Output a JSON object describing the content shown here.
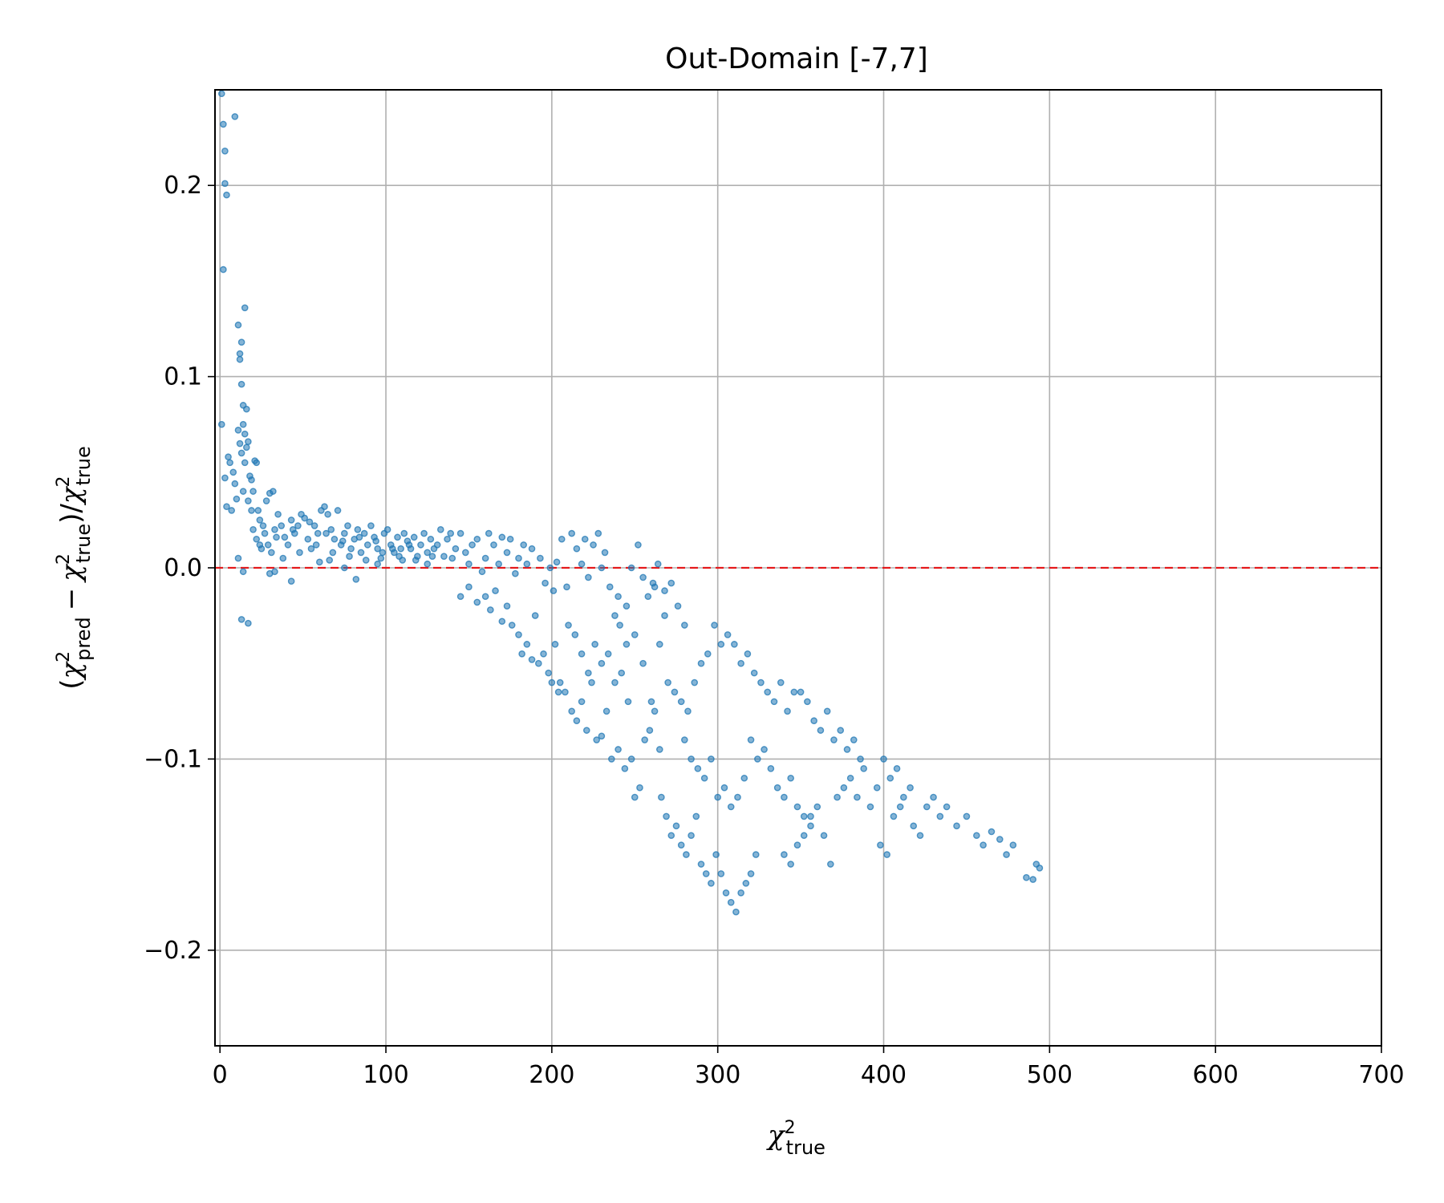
{
  "chart_data": {
    "type": "scatter",
    "title": "Out-Domain [-7,7]",
    "xlim": [
      -3,
      700
    ],
    "ylim": [
      -0.25,
      0.25
    ],
    "xticks": [
      0,
      100,
      200,
      300,
      400,
      500,
      600,
      700
    ],
    "xtick_labels": [
      "0",
      "100",
      "200",
      "300",
      "400",
      "500",
      "600",
      "700"
    ],
    "yticks": [
      -0.2,
      -0.1,
      0.0,
      0.1,
      0.2
    ],
    "ytick_labels": [
      "−0.2",
      "−0.1",
      "0.0",
      "0.1",
      "0.2"
    ],
    "grid": true,
    "reference_line": {
      "y": 0.0,
      "color": "#e41a1c",
      "style": "dashed"
    },
    "point_color": "#1f77b4",
    "xlabel": {
      "base": "χ",
      "sup": "2",
      "sub": "true"
    },
    "ylabel": {
      "num_a_sub": "pred",
      "num_b_sub": "true",
      "den_sub": "true",
      "sup": "2",
      "base": "χ",
      "minus": "−"
    },
    "points": [
      [
        1,
        0.248
      ],
      [
        2,
        0.232
      ],
      [
        3,
        0.218
      ],
      [
        3,
        0.201
      ],
      [
        4,
        0.195
      ],
      [
        9,
        0.236
      ],
      [
        2,
        0.156
      ],
      [
        1,
        0.075
      ],
      [
        3,
        0.047
      ],
      [
        4,
        0.032
      ],
      [
        5,
        0.058
      ],
      [
        6,
        0.055
      ],
      [
        7,
        0.03
      ],
      [
        8,
        0.05
      ],
      [
        9,
        0.044
      ],
      [
        10,
        0.036
      ],
      [
        11,
        0.127
      ],
      [
        12,
        0.112
      ],
      [
        13,
        0.118
      ],
      [
        12,
        0.109
      ],
      [
        15,
        0.136
      ],
      [
        13,
        0.096
      ],
      [
        14,
        0.085
      ],
      [
        16,
        0.083
      ],
      [
        11,
        0.072
      ],
      [
        12,
        0.065
      ],
      [
        13,
        0.06
      ],
      [
        14,
        0.075
      ],
      [
        15,
        0.07
      ],
      [
        16,
        0.063
      ],
      [
        17,
        0.066
      ],
      [
        15,
        0.055
      ],
      [
        18,
        0.048
      ],
      [
        19,
        0.046
      ],
      [
        20,
        0.04
      ],
      [
        21,
        0.056
      ],
      [
        22,
        0.055
      ],
      [
        14,
        0.04
      ],
      [
        17,
        0.035
      ],
      [
        19,
        0.03
      ],
      [
        23,
        0.03
      ],
      [
        24,
        0.025
      ],
      [
        26,
        0.022
      ],
      [
        28,
        0.035
      ],
      [
        30,
        0.039
      ],
      [
        32,
        0.04
      ],
      [
        11,
        0.005
      ],
      [
        13,
        -0.027
      ],
      [
        17,
        -0.029
      ],
      [
        14,
        -0.002
      ],
      [
        20,
        0.02
      ],
      [
        22,
        0.015
      ],
      [
        25,
        0.01
      ],
      [
        27,
        0.018
      ],
      [
        29,
        0.012
      ],
      [
        31,
        0.008
      ],
      [
        33,
        0.02
      ],
      [
        35,
        0.028
      ],
      [
        37,
        0.022
      ],
      [
        39,
        0.016
      ],
      [
        41,
        0.012
      ],
      [
        43,
        0.025
      ],
      [
        45,
        0.018
      ],
      [
        47,
        0.022
      ],
      [
        49,
        0.028
      ],
      [
        51,
        0.026
      ],
      [
        53,
        0.015
      ],
      [
        55,
        0.01
      ],
      [
        57,
        0.022
      ],
      [
        59,
        0.018
      ],
      [
        61,
        0.03
      ],
      [
        63,
        0.032
      ],
      [
        65,
        0.028
      ],
      [
        67,
        0.02
      ],
      [
        69,
        0.015
      ],
      [
        71,
        0.03
      ],
      [
        73,
        0.012
      ],
      [
        75,
        0.018
      ],
      [
        77,
        0.022
      ],
      [
        79,
        0.01
      ],
      [
        81,
        0.015
      ],
      [
        83,
        0.02
      ],
      [
        85,
        0.008
      ],
      [
        87,
        0.018
      ],
      [
        89,
        0.012
      ],
      [
        91,
        0.022
      ],
      [
        93,
        0.016
      ],
      [
        95,
        0.01
      ],
      [
        97,
        0.005
      ],
      [
        99,
        0.018
      ],
      [
        101,
        0.02
      ],
      [
        103,
        0.012
      ],
      [
        105,
        0.008
      ],
      [
        107,
        0.016
      ],
      [
        109,
        0.01
      ],
      [
        111,
        0.018
      ],
      [
        113,
        0.014
      ],
      [
        115,
        0.01
      ],
      [
        117,
        0.016
      ],
      [
        119,
        0.006
      ],
      [
        121,
        0.012
      ],
      [
        123,
        0.018
      ],
      [
        125,
        0.008
      ],
      [
        127,
        0.015
      ],
      [
        129,
        0.01
      ],
      [
        131,
        0.012
      ],
      [
        133,
        0.02
      ],
      [
        135,
        0.006
      ],
      [
        137,
        0.015
      ],
      [
        139,
        0.018
      ],
      [
        30,
        -0.003
      ],
      [
        33,
        -0.002
      ],
      [
        43,
        -0.007
      ],
      [
        60,
        0.003
      ],
      [
        66,
        0.004
      ],
      [
        75,
        0.0
      ],
      [
        82,
        -0.006
      ],
      [
        95,
        0.002
      ],
      [
        110,
        0.004
      ],
      [
        125,
        0.002
      ],
      [
        38,
        0.005
      ],
      [
        48,
        0.008
      ],
      [
        58,
        0.012
      ],
      [
        68,
        0.008
      ],
      [
        78,
        0.006
      ],
      [
        88,
        0.004
      ],
      [
        98,
        0.008
      ],
      [
        108,
        0.006
      ],
      [
        118,
        0.004
      ],
      [
        128,
        0.006
      ],
      [
        24,
        0.012
      ],
      [
        34,
        0.016
      ],
      [
        44,
        0.02
      ],
      [
        54,
        0.024
      ],
      [
        64,
        0.018
      ],
      [
        74,
        0.014
      ],
      [
        84,
        0.016
      ],
      [
        94,
        0.014
      ],
      [
        104,
        0.01
      ],
      [
        114,
        0.012
      ],
      [
        140,
        0.005
      ],
      [
        142,
        0.01
      ],
      [
        145,
        0.018
      ],
      [
        148,
        0.008
      ],
      [
        150,
        0.002
      ],
      [
        152,
        0.012
      ],
      [
        155,
        0.015
      ],
      [
        158,
        -0.002
      ],
      [
        160,
        0.005
      ],
      [
        162,
        0.018
      ],
      [
        165,
        0.012
      ],
      [
        168,
        0.002
      ],
      [
        170,
        0.016
      ],
      [
        173,
        0.008
      ],
      [
        175,
        0.015
      ],
      [
        178,
        -0.003
      ],
      [
        180,
        0.005
      ],
      [
        183,
        0.012
      ],
      [
        185,
        0.002
      ],
      [
        188,
        0.01
      ],
      [
        145,
        -0.015
      ],
      [
        150,
        -0.01
      ],
      [
        155,
        -0.018
      ],
      [
        160,
        -0.015
      ],
      [
        163,
        -0.022
      ],
      [
        166,
        -0.012
      ],
      [
        170,
        -0.028
      ],
      [
        173,
        -0.02
      ],
      [
        176,
        -0.03
      ],
      [
        180,
        -0.035
      ],
      [
        182,
        -0.045
      ],
      [
        185,
        -0.04
      ],
      [
        188,
        -0.048
      ],
      [
        190,
        -0.025
      ],
      [
        192,
        -0.05
      ],
      [
        195,
        -0.045
      ],
      [
        198,
        -0.055
      ],
      [
        200,
        -0.06
      ],
      [
        202,
        -0.04
      ],
      [
        204,
        -0.065
      ],
      [
        193,
        0.005
      ],
      [
        196,
        -0.008
      ],
      [
        199,
        0.0
      ],
      [
        201,
        -0.012
      ],
      [
        203,
        0.003
      ],
      [
        206,
        0.015
      ],
      [
        209,
        -0.01
      ],
      [
        212,
        0.018
      ],
      [
        215,
        0.01
      ],
      [
        218,
        0.002
      ],
      [
        220,
        0.015
      ],
      [
        222,
        -0.005
      ],
      [
        225,
        0.012
      ],
      [
        228,
        0.018
      ],
      [
        230,
        0.0
      ],
      [
        232,
        0.008
      ],
      [
        235,
        -0.01
      ],
      [
        238,
        -0.025
      ],
      [
        241,
        -0.03
      ],
      [
        245,
        -0.04
      ],
      [
        205,
        -0.06
      ],
      [
        208,
        -0.065
      ],
      [
        212,
        -0.075
      ],
      [
        215,
        -0.08
      ],
      [
        218,
        -0.07
      ],
      [
        221,
        -0.085
      ],
      [
        224,
        -0.06
      ],
      [
        227,
        -0.09
      ],
      [
        230,
        -0.088
      ],
      [
        233,
        -0.075
      ],
      [
        210,
        -0.03
      ],
      [
        214,
        -0.035
      ],
      [
        218,
        -0.045
      ],
      [
        222,
        -0.055
      ],
      [
        226,
        -0.04
      ],
      [
        230,
        -0.05
      ],
      [
        234,
        -0.045
      ],
      [
        238,
        -0.06
      ],
      [
        242,
        -0.055
      ],
      [
        246,
        -0.07
      ],
      [
        236,
        -0.1
      ],
      [
        240,
        -0.095
      ],
      [
        244,
        -0.105
      ],
      [
        248,
        -0.1
      ],
      [
        250,
        -0.12
      ],
      [
        253,
        -0.115
      ],
      [
        256,
        -0.09
      ],
      [
        259,
        -0.085
      ],
      [
        262,
        -0.075
      ],
      [
        265,
        -0.095
      ],
      [
        248,
        0.0
      ],
      [
        252,
        0.012
      ],
      [
        255,
        -0.005
      ],
      [
        258,
        -0.015
      ],
      [
        261,
        -0.008
      ],
      [
        264,
        0.002
      ],
      [
        268,
        -0.012
      ],
      [
        272,
        -0.008
      ],
      [
        276,
        -0.02
      ],
      [
        280,
        -0.03
      ],
      [
        266,
        -0.12
      ],
      [
        269,
        -0.13
      ],
      [
        272,
        -0.14
      ],
      [
        275,
        -0.135
      ],
      [
        278,
        -0.145
      ],
      [
        281,
        -0.15
      ],
      [
        284,
        -0.14
      ],
      [
        287,
        -0.13
      ],
      [
        290,
        -0.155
      ],
      [
        293,
        -0.16
      ],
      [
        296,
        -0.165
      ],
      [
        299,
        -0.15
      ],
      [
        302,
        -0.16
      ],
      [
        305,
        -0.17
      ],
      [
        308,
        -0.175
      ],
      [
        311,
        -0.18
      ],
      [
        314,
        -0.17
      ],
      [
        317,
        -0.165
      ],
      [
        320,
        -0.16
      ],
      [
        323,
        -0.15
      ],
      [
        270,
        -0.06
      ],
      [
        274,
        -0.065
      ],
      [
        278,
        -0.07
      ],
      [
        282,
        -0.075
      ],
      [
        286,
        -0.06
      ],
      [
        290,
        -0.05
      ],
      [
        294,
        -0.045
      ],
      [
        298,
        -0.03
      ],
      [
        302,
        -0.04
      ],
      [
        306,
        -0.035
      ],
      [
        280,
        -0.09
      ],
      [
        284,
        -0.1
      ],
      [
        288,
        -0.105
      ],
      [
        292,
        -0.11
      ],
      [
        296,
        -0.1
      ],
      [
        300,
        -0.12
      ],
      [
        304,
        -0.115
      ],
      [
        308,
        -0.125
      ],
      [
        312,
        -0.12
      ],
      [
        316,
        -0.11
      ],
      [
        310,
        -0.04
      ],
      [
        314,
        -0.05
      ],
      [
        318,
        -0.045
      ],
      [
        322,
        -0.055
      ],
      [
        326,
        -0.06
      ],
      [
        330,
        -0.065
      ],
      [
        334,
        -0.07
      ],
      [
        338,
        -0.06
      ],
      [
        342,
        -0.075
      ],
      [
        346,
        -0.065
      ],
      [
        320,
        -0.09
      ],
      [
        324,
        -0.1
      ],
      [
        328,
        -0.095
      ],
      [
        332,
        -0.105
      ],
      [
        336,
        -0.115
      ],
      [
        340,
        -0.12
      ],
      [
        344,
        -0.11
      ],
      [
        348,
        -0.125
      ],
      [
        352,
        -0.13
      ],
      [
        356,
        -0.135
      ],
      [
        340,
        -0.15
      ],
      [
        344,
        -0.155
      ],
      [
        348,
        -0.145
      ],
      [
        352,
        -0.14
      ],
      [
        356,
        -0.13
      ],
      [
        360,
        -0.125
      ],
      [
        364,
        -0.14
      ],
      [
        368,
        -0.155
      ],
      [
        372,
        -0.12
      ],
      [
        376,
        -0.115
      ],
      [
        350,
        -0.065
      ],
      [
        354,
        -0.07
      ],
      [
        358,
        -0.08
      ],
      [
        362,
        -0.085
      ],
      [
        366,
        -0.075
      ],
      [
        370,
        -0.09
      ],
      [
        374,
        -0.085
      ],
      [
        378,
        -0.095
      ],
      [
        382,
        -0.09
      ],
      [
        386,
        -0.1
      ],
      [
        380,
        -0.11
      ],
      [
        384,
        -0.12
      ],
      [
        388,
        -0.105
      ],
      [
        392,
        -0.125
      ],
      [
        396,
        -0.115
      ],
      [
        400,
        -0.1
      ],
      [
        404,
        -0.11
      ],
      [
        408,
        -0.105
      ],
      [
        412,
        -0.12
      ],
      [
        416,
        -0.115
      ],
      [
        398,
        -0.145
      ],
      [
        402,
        -0.15
      ],
      [
        406,
        -0.13
      ],
      [
        410,
        -0.125
      ],
      [
        418,
        -0.135
      ],
      [
        422,
        -0.14
      ],
      [
        426,
        -0.125
      ],
      [
        430,
        -0.12
      ],
      [
        434,
        -0.13
      ],
      [
        438,
        -0.125
      ],
      [
        444,
        -0.135
      ],
      [
        450,
        -0.13
      ],
      [
        456,
        -0.14
      ],
      [
        460,
        -0.145
      ],
      [
        465,
        -0.138
      ],
      [
        470,
        -0.142
      ],
      [
        474,
        -0.15
      ],
      [
        478,
        -0.145
      ],
      [
        486,
        -0.162
      ],
      [
        490,
        -0.163
      ],
      [
        492,
        -0.155
      ],
      [
        494,
        -0.157
      ],
      [
        260,
        -0.07
      ],
      [
        255,
        -0.05
      ],
      [
        250,
        -0.035
      ],
      [
        245,
        -0.02
      ],
      [
        240,
        -0.015
      ],
      [
        265,
        -0.04
      ],
      [
        268,
        -0.025
      ],
      [
        262,
        -0.01
      ]
    ]
  }
}
